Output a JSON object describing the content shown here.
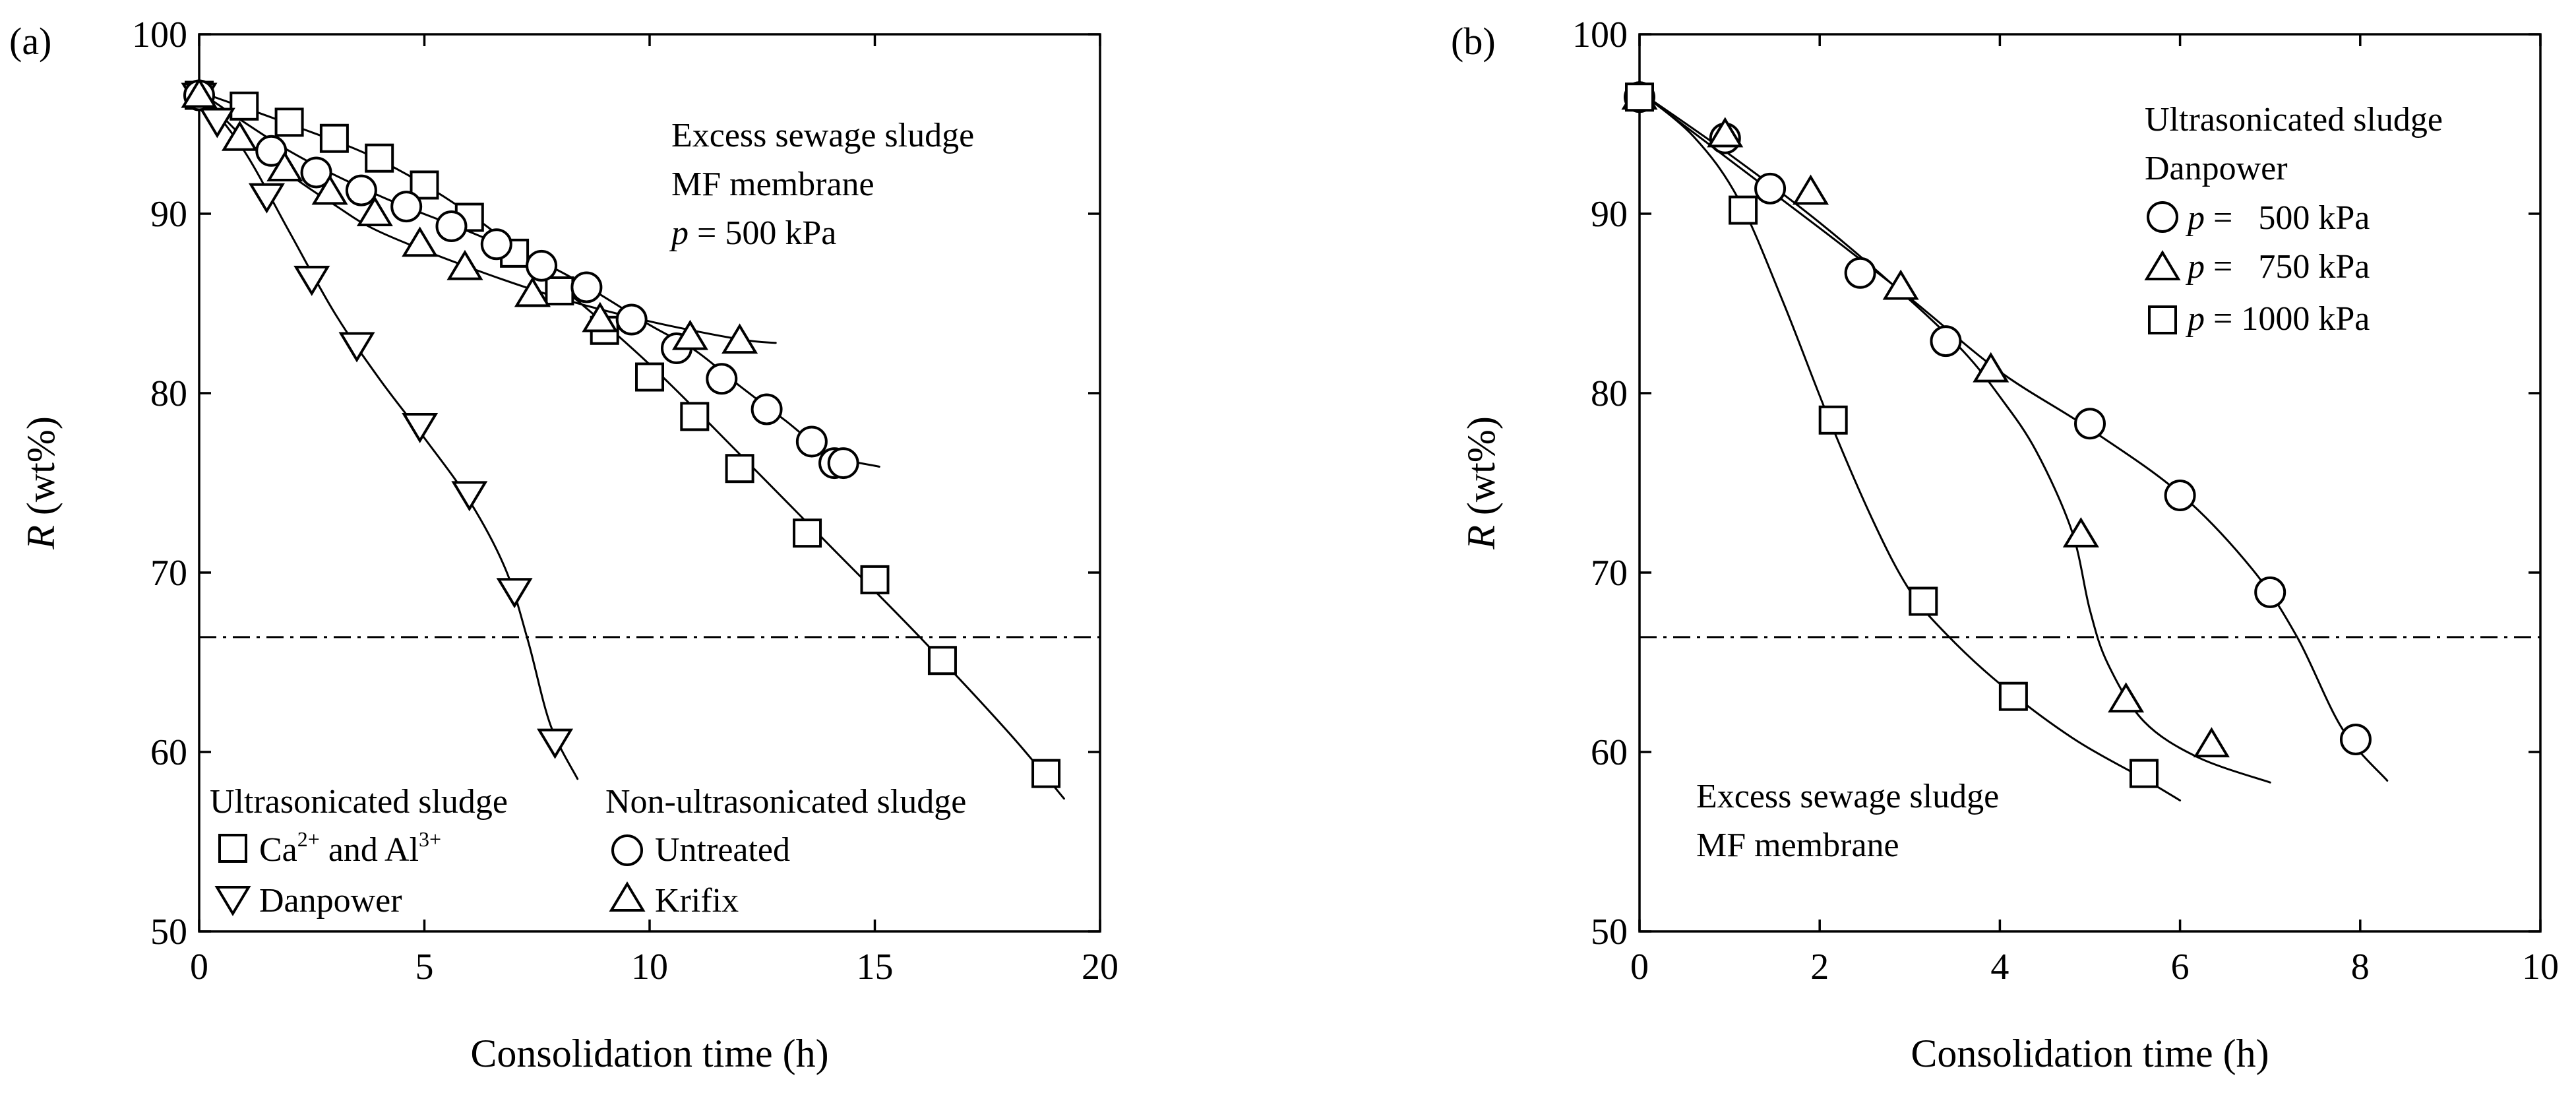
{
  "chart_data": [
    {
      "type": "scatter",
      "panel_label": "(a)",
      "xlabel": "Consolidation time  (h)",
      "ylabel_symbol": "R",
      "ylabel_unit": "(wt%)",
      "xlim": [
        0,
        20
      ],
      "ylim": [
        50,
        100
      ],
      "xticks": [
        0,
        5,
        10,
        15,
        20
      ],
      "yticks": [
        50,
        60,
        70,
        80,
        90,
        100
      ],
      "reference_line_y": 66.4,
      "annotation": [
        "Excess sewage sludge",
        "MF membrane"
      ],
      "pressure_label": {
        "symbol": "p",
        "text": " = 500 kPa"
      },
      "legend_groups": [
        {
          "title": "Ultrasonicated sludge",
          "entries": [
            {
              "marker": "square",
              "name": "Ca",
              "sup1": "2+",
              "mid": " and Al",
              "sup2": "3+"
            },
            {
              "marker": "triangle-down",
              "name": "Danpower"
            }
          ]
        },
        {
          "title": "Non-ultrasonicated sludge",
          "entries": [
            {
              "marker": "circle",
              "name": "Untreated"
            },
            {
              "marker": "triangle-up",
              "name": "Krifix"
            }
          ]
        }
      ],
      "series": [
        {
          "name": "Ca2+ and Al3+",
          "marker": "square",
          "x": [
            0,
            1.0,
            2.0,
            3.0,
            4.0,
            5.0,
            6.0,
            7.0,
            8.0,
            9.0,
            10.0,
            11.0,
            12.0,
            13.5,
            15.0,
            16.5,
            18.8
          ],
          "y": [
            96.6,
            96.0,
            95.1,
            94.2,
            93.1,
            91.6,
            89.8,
            87.8,
            85.7,
            83.5,
            80.9,
            78.7,
            75.8,
            72.2,
            69.6,
            65.1,
            58.8
          ],
          "fit": [
            [
              0,
              96.8
            ],
            [
              2,
              95.0
            ],
            [
              4,
              93.0
            ],
            [
              6,
              90.0
            ],
            [
              8,
              86.0
            ],
            [
              10,
              81.6
            ],
            [
              12,
              76.6
            ],
            [
              14,
              71.5
            ],
            [
              16,
              66.4
            ],
            [
              18,
              61.0
            ],
            [
              19.2,
              57.4
            ]
          ]
        },
        {
          "name": "Danpower",
          "marker": "triangle-down",
          "x": [
            0,
            0.4,
            1.5,
            2.5,
            3.5,
            4.9,
            6.0,
            7.0,
            7.9
          ],
          "y": [
            96.6,
            95.2,
            91.0,
            86.4,
            82.7,
            78.2,
            74.4,
            69.0,
            60.6
          ],
          "fit": [
            [
              0,
              96.8
            ],
            [
              1,
              93.5
            ],
            [
              2,
              89.0
            ],
            [
              3,
              84.5
            ],
            [
              4,
              80.8
            ],
            [
              5,
              77.5
            ],
            [
              6,
              74.0
            ],
            [
              6.8,
              70.2
            ],
            [
              7.3,
              66.2
            ],
            [
              7.8,
              61.5
            ],
            [
              8.4,
              58.5
            ]
          ]
        },
        {
          "name": "Untreated",
          "marker": "circle",
          "x": [
            0,
            1.6,
            2.6,
            3.6,
            4.6,
            5.6,
            6.6,
            7.6,
            8.6,
            9.6,
            10.6,
            11.6,
            12.6,
            13.6,
            14.1,
            14.3
          ],
          "y": [
            96.6,
            93.5,
            92.3,
            91.3,
            90.4,
            89.3,
            88.3,
            87.1,
            85.9,
            84.1,
            82.5,
            80.8,
            79.1,
            77.3,
            76.1,
            76.1
          ],
          "fit": [
            [
              0,
              96.8
            ],
            [
              2,
              93.5
            ],
            [
              4,
              91.0
            ],
            [
              6,
              89.0
            ],
            [
              8,
              86.8
            ],
            [
              10,
              83.8
            ],
            [
              11,
              82.4
            ],
            [
              12,
              80.4
            ],
            [
              13,
              78.5
            ],
            [
              14,
              76.6
            ],
            [
              15.1,
              75.9
            ]
          ]
        },
        {
          "name": "Krifix",
          "marker": "triangle-up",
          "x": [
            0,
            0.9,
            1.9,
            2.9,
            3.9,
            4.9,
            5.9,
            7.4,
            8.9,
            10.9,
            12.0
          ],
          "y": [
            96.6,
            94.2,
            92.5,
            91.2,
            90.0,
            88.3,
            87.0,
            85.5,
            84.1,
            83.1,
            82.9
          ],
          "fit": [
            [
              0,
              96.8
            ],
            [
              1,
              94.2
            ],
            [
              2,
              92.2
            ],
            [
              3,
              90.5
            ],
            [
              4,
              89.0
            ],
            [
              6,
              87.0
            ],
            [
              8,
              85.3
            ],
            [
              10,
              84.0
            ],
            [
              12,
              83.0
            ],
            [
              12.8,
              82.8
            ]
          ]
        }
      ]
    },
    {
      "type": "scatter",
      "panel_label": "(b)",
      "xlabel": "Consolidation time  (h)",
      "ylabel_symbol": "R",
      "ylabel_unit": "(wt%)",
      "xlim": [
        0,
        10
      ],
      "ylim": [
        50,
        100
      ],
      "xticks": [
        0,
        2,
        4,
        6,
        8,
        10
      ],
      "yticks": [
        50,
        60,
        70,
        80,
        90,
        100
      ],
      "reference_line_y": 66.4,
      "annotation_top": [
        "Ultrasonicated sludge",
        "Danpower"
      ],
      "annotation_bottom": [
        "Excess sewage sludge",
        "MF membrane"
      ],
      "legend": [
        {
          "marker": "circle",
          "symbol": "p",
          "text": " =   500 kPa"
        },
        {
          "marker": "triangle-up",
          "symbol": "p",
          "text": " =   750 kPa"
        },
        {
          "marker": "square",
          "symbol": "p",
          "text": " = 1000 kPa"
        }
      ],
      "series": [
        {
          "name": "p = 500 kPa",
          "marker": "circle",
          "x": [
            0,
            0.95,
            1.45,
            2.45,
            3.4,
            5.0,
            6.0,
            7.0,
            7.95
          ],
          "y": [
            96.5,
            94.2,
            91.4,
            86.7,
            82.9,
            78.3,
            74.3,
            68.9,
            60.7
          ],
          "fit": [
            [
              0,
              96.8
            ],
            [
              1,
              93.0
            ],
            [
              2,
              89.2
            ],
            [
              3,
              85.3
            ],
            [
              4,
              81.2
            ],
            [
              5,
              78.0
            ],
            [
              6,
              74.4
            ],
            [
              6.8,
              70.2
            ],
            [
              7.3,
              66.4
            ],
            [
              7.8,
              61.3
            ],
            [
              8.3,
              58.4
            ]
          ]
        },
        {
          "name": "p = 750 kPa",
          "marker": "triangle-up",
          "x": [
            0,
            0.95,
            1.9,
            2.9,
            3.9,
            4.9,
            5.4,
            6.35
          ],
          "y": [
            96.5,
            94.4,
            91.2,
            85.9,
            81.3,
            72.1,
            62.9,
            60.4
          ],
          "fit": [
            [
              0,
              96.8
            ],
            [
              1,
              93.3
            ],
            [
              2,
              89.5
            ],
            [
              3,
              85.2
            ],
            [
              3.6,
              82.3
            ],
            [
              4,
              79.8
            ],
            [
              4.4,
              76.8
            ],
            [
              4.8,
              72.3
            ],
            [
              5.0,
              67.9
            ],
            [
              5.2,
              64.9
            ],
            [
              5.6,
              61.7
            ],
            [
              6.2,
              59.7
            ],
            [
              7.0,
              58.3
            ]
          ]
        },
        {
          "name": "p = 1000 kPa",
          "marker": "square",
          "x": [
            0,
            1.15,
            2.15,
            3.15,
            4.15,
            5.6
          ],
          "y": [
            96.5,
            90.2,
            78.5,
            68.4,
            63.1,
            58.8
          ],
          "fit": [
            [
              0,
              96.8
            ],
            [
              0.6,
              94.3
            ],
            [
              1.1,
              90.8
            ],
            [
              1.6,
              85.0
            ],
            [
              2.1,
              78.6
            ],
            [
              2.6,
              72.8
            ],
            [
              3.0,
              69.0
            ],
            [
              3.4,
              66.6
            ],
            [
              4.0,
              63.8
            ],
            [
              4.8,
              60.8
            ],
            [
              5.6,
              58.5
            ],
            [
              6.0,
              57.3
            ]
          ]
        }
      ]
    }
  ]
}
